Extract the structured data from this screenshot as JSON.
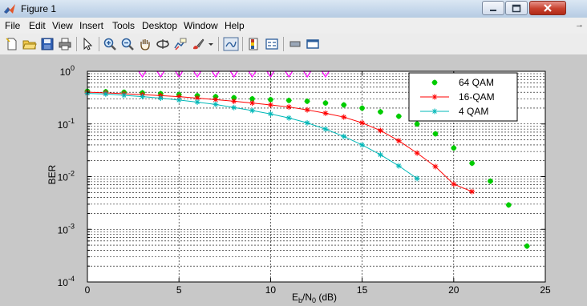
{
  "window": {
    "title": "Figure 1"
  },
  "menu": {
    "items": [
      "File",
      "Edit",
      "View",
      "Insert",
      "Tools",
      "Desktop",
      "Window",
      "Help"
    ]
  },
  "toolbar": {
    "icons": [
      "new-file-icon",
      "open-folder-icon",
      "save-icon",
      "print-icon",
      "pointer-icon",
      "zoom-in-icon",
      "zoom-out-icon",
      "pan-hand-icon",
      "rotate-3d-icon",
      "data-cursor-icon",
      "brush-icon",
      "dropdown-icon",
      "link-plot-icon",
      "colorbar-icon",
      "legend-icon",
      "hide-plot-tools-icon",
      "show-plot-tools-icon"
    ]
  },
  "colors": {
    "series_64qam": "#00cc00",
    "series_16qam": "#ff0000",
    "series_4qam": "#00b8b8",
    "markers_top": "#ff00ff"
  },
  "chart_data": {
    "type": "line",
    "title": "",
    "xlabel_main": "E",
    "xlabel_sub_b": "b",
    "xlabel_mid": "/N",
    "xlabel_sub_0": "0",
    "xlabel_tail": " (dB)",
    "ylabel": "BER",
    "xlim": [
      0,
      25
    ],
    "ylim": [
      0.0001,
      1
    ],
    "yscale": "log",
    "grid": true,
    "legend_position": "top-right",
    "x_ticks": [
      "0",
      "5",
      "10",
      "15",
      "20",
      "25"
    ],
    "y_ticks": [
      {
        "base": "10",
        "exp": "0"
      },
      {
        "base": "10",
        "exp": "-1"
      },
      {
        "base": "10",
        "exp": "-2"
      },
      {
        "base": "10",
        "exp": "-3"
      },
      {
        "base": "10",
        "exp": "-4"
      }
    ],
    "series": [
      {
        "name": "64 QAM",
        "marker": "dot",
        "line": false,
        "x": [
          0,
          1,
          2,
          3,
          4,
          5,
          6,
          7,
          8,
          9,
          10,
          11,
          12,
          13,
          14,
          15,
          16,
          17,
          18,
          19,
          20,
          21,
          22,
          23,
          24
        ],
        "y": [
          0.42,
          0.41,
          0.4,
          0.39,
          0.375,
          0.36,
          0.345,
          0.33,
          0.315,
          0.3,
          0.29,
          0.28,
          0.27,
          0.25,
          0.23,
          0.2,
          0.17,
          0.14,
          0.1,
          0.065,
          0.035,
          0.018,
          0.0082,
          0.0029,
          0.00048
        ]
      },
      {
        "name": "16-QAM",
        "marker": "star",
        "line": true,
        "x": [
          0,
          1,
          2,
          3,
          4,
          5,
          6,
          7,
          8,
          9,
          10,
          11,
          12,
          13,
          14,
          15,
          16,
          17,
          18,
          19,
          20,
          21
        ],
        "y": [
          0.4,
          0.39,
          0.375,
          0.36,
          0.345,
          0.33,
          0.31,
          0.29,
          0.27,
          0.25,
          0.23,
          0.21,
          0.185,
          0.16,
          0.135,
          0.105,
          0.075,
          0.048,
          0.028,
          0.0155,
          0.0072,
          0.0052
        ]
      },
      {
        "name": "4 QAM",
        "marker": "star",
        "line": true,
        "x": [
          0,
          1,
          2,
          3,
          4,
          5,
          6,
          7,
          8,
          9,
          10,
          11,
          12,
          13,
          14,
          15,
          16,
          17,
          18
        ],
        "y": [
          0.38,
          0.37,
          0.35,
          0.33,
          0.31,
          0.285,
          0.26,
          0.235,
          0.205,
          0.18,
          0.155,
          0.13,
          0.105,
          0.08,
          0.058,
          0.04,
          0.026,
          0.016,
          0.0092
        ]
      },
      {
        "name": "",
        "marker": "triangle-down",
        "line": false,
        "x": [
          3,
          4,
          5,
          6,
          7,
          8,
          9,
          10,
          11,
          12,
          13
        ],
        "y": [
          1,
          1,
          1,
          1,
          1,
          1,
          1,
          1,
          1,
          1,
          1
        ]
      }
    ]
  }
}
